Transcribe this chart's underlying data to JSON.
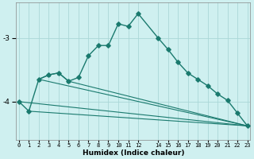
{
  "xlabel": "Humidex (Indice chaleur)",
  "background_color": "#cff0f0",
  "grid_color": "#aad8d8",
  "line_color": "#1a7a6e",
  "ylim": [
    -4.6,
    -2.45
  ],
  "yticks": [
    -4,
    -3
  ],
  "xlim": [
    -0.3,
    23.3
  ],
  "x_ticks": [
    0,
    1,
    2,
    3,
    4,
    5,
    6,
    7,
    8,
    9,
    10,
    11,
    12,
    14,
    15,
    16,
    17,
    18,
    19,
    20,
    21,
    22,
    23
  ],
  "main_line": {
    "x": [
      0,
      1,
      2,
      3,
      4,
      5,
      6,
      7,
      8,
      9,
      10,
      11,
      12,
      14,
      15,
      16,
      17,
      18,
      19,
      20,
      21,
      22,
      23
    ],
    "y": [
      -4.0,
      -4.15,
      -3.65,
      -3.58,
      -3.55,
      -3.68,
      -3.62,
      -3.28,
      -3.12,
      -3.12,
      -2.78,
      -2.82,
      -2.62,
      -3.0,
      -3.18,
      -3.38,
      -3.55,
      -3.65,
      -3.75,
      -3.88,
      -3.98,
      -4.18,
      -4.38
    ]
  },
  "straight_lines": [
    {
      "x": [
        0,
        23
      ],
      "y": [
        -4.0,
        -4.38
      ]
    },
    {
      "x": [
        1,
        23
      ],
      "y": [
        -4.15,
        -4.38
      ]
    },
    {
      "x": [
        2,
        23
      ],
      "y": [
        -3.65,
        -4.38
      ]
    },
    {
      "x": [
        5,
        23
      ],
      "y": [
        -3.68,
        -4.38
      ]
    }
  ],
  "triangle_line": {
    "x": [
      2,
      3,
      4,
      5
    ],
    "y": [
      -3.65,
      -3.58,
      -3.55,
      -3.68
    ]
  }
}
